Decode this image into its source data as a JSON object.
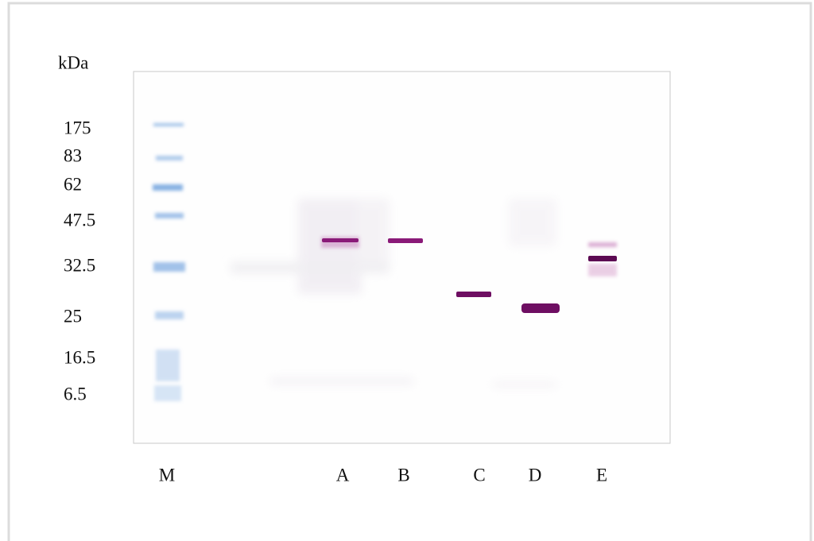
{
  "axis_label": "kDa",
  "markers": [
    175,
    83,
    62,
    47.5,
    32.5,
    25,
    16.5,
    6.5
  ],
  "lanes": [
    "M",
    "A",
    "B",
    "C",
    "D",
    "E"
  ]
}
